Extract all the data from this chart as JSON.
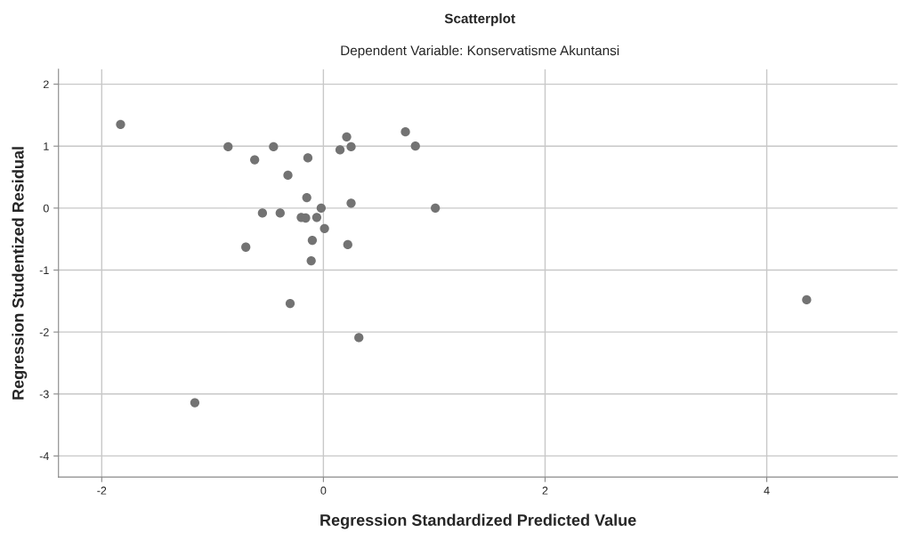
{
  "chart_data": {
    "type": "scatter",
    "title": "Scatterplot",
    "subtitle": "Dependent Variable: Konservatisme Akuntansi",
    "xlabel": "Regression Standardized Predicted Value",
    "ylabel": "Regression Studentized Residual",
    "x": [
      -1.83,
      -0.86,
      -0.45,
      -0.62,
      -0.14,
      -0.32,
      0.21,
      0.15,
      0.25,
      0.74,
      0.83,
      -0.15,
      -0.02,
      0.25,
      1.01,
      -0.55,
      -0.39,
      -0.2,
      -0.16,
      -0.06,
      0.01,
      -0.1,
      0.22,
      -0.7,
      -0.11,
      -0.3,
      0.32,
      -1.16,
      4.36
    ],
    "values": [
      1.35,
      0.99,
      0.99,
      0.78,
      0.81,
      0.53,
      1.15,
      0.94,
      0.99,
      1.23,
      1.0,
      0.17,
      0.0,
      0.08,
      0.0,
      -0.08,
      -0.08,
      -0.15,
      -0.16,
      -0.15,
      -0.33,
      -0.52,
      -0.59,
      -0.63,
      -0.85,
      -1.54,
      -2.09,
      -3.14,
      -1.48
    ],
    "color": "#737373",
    "marker": "circle",
    "xlim": [
      -2.39,
      5.18
    ],
    "ylim": [
      -4.34,
      2.24
    ],
    "xticks": [
      -2,
      0,
      2,
      4
    ],
    "yticks": [
      -4,
      -3,
      -2,
      -1,
      0,
      1,
      2
    ],
    "grid": true,
    "legend": false
  }
}
